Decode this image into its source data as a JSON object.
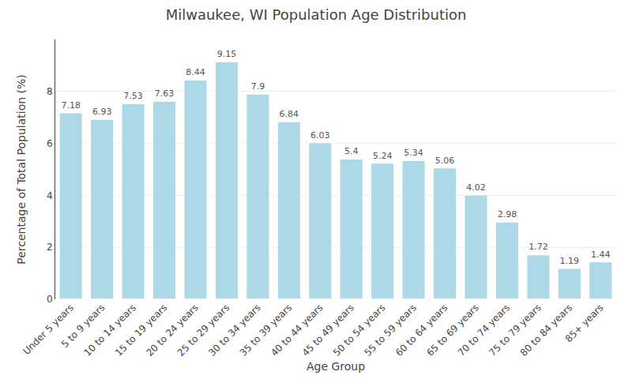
{
  "chart_data": {
    "type": "bar",
    "title": "Milwaukee, WI Population Age Distribution",
    "xlabel": "Age Group",
    "ylabel": "Percentage of Total Population (%)",
    "categories": [
      "Under 5 years",
      "5 to 9 years",
      "10 to 14 years",
      "15 to 19 years",
      "20 to 24 years",
      "25 to 29 years",
      "30 to 34 years",
      "35 to 39 years",
      "40 to 44 years",
      "45 to 49 years",
      "50 to 54 years",
      "55 to 59 years",
      "60 to 64 years",
      "65 to 69 years",
      "70 to 74 years",
      "75 to 79 years",
      "80 to 84 years",
      "85+ years"
    ],
    "values": [
      7.18,
      6.93,
      7.53,
      7.63,
      8.44,
      9.15,
      7.9,
      6.84,
      6.03,
      5.4,
      5.24,
      5.34,
      5.06,
      4.02,
      2.98,
      1.72,
      1.19,
      1.44
    ],
    "color": "#add8e6",
    "ylim": [
      0,
      10
    ],
    "yticks": [
      0,
      2,
      4,
      6,
      8
    ],
    "grid": true,
    "data_labels": true
  }
}
